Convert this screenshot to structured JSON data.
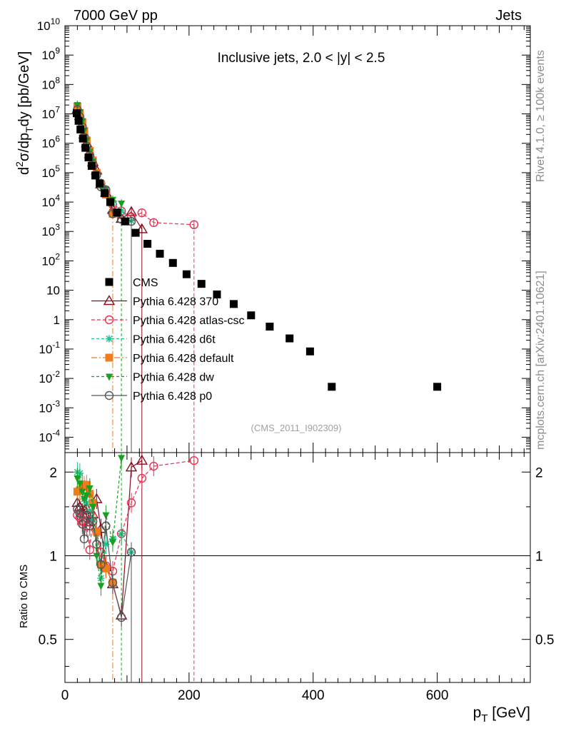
{
  "header": {
    "left": "7000 GeV pp",
    "right": "Jets"
  },
  "side": {
    "rivet": "Rivet 4.1.0, ≥ 100k events",
    "mcplots": "mcplots.cern.ch [arXiv:2401.10621]"
  },
  "chart_data": {
    "type": "scatter",
    "title": "Inclusive jets, 2.0 < |y| < 2.5",
    "watermark": "(CMS_2011_I902309)",
    "ylabel_parts": {
      "d": "d",
      "two": "2",
      "sigma": "σ/dp",
      "T": "T",
      "rest": "dy [pb/GeV]"
    },
    "xlabel_parts": {
      "p": "p",
      "T": "T",
      "unit": " [GeV]"
    },
    "ratio_ylabel": "Ratio to CMS",
    "x_ticks": [
      "0",
      "200",
      "400",
      "600"
    ],
    "xlim": [
      0,
      750
    ],
    "ylim": [
      3e-05,
      10000000000.0
    ],
    "ratio_ylim": [
      0.35,
      2.35
    ],
    "ratio_ticks": [
      "0.5",
      "1",
      "2"
    ],
    "y_ticks": [
      {
        "base": "10",
        "exp": "-4",
        "v": 0.0001
      },
      {
        "base": "10",
        "exp": "-3",
        "v": 0.001
      },
      {
        "base": "10",
        "exp": "-2",
        "v": 0.01
      },
      {
        "base": "10",
        "exp": "-1",
        "v": 0.1
      },
      {
        "base": "1",
        "exp": "",
        "v": 1
      },
      {
        "base": "10",
        "exp": "",
        "v": 10
      },
      {
        "base": "10",
        "exp": "2",
        "v": 100.0
      },
      {
        "base": "10",
        "exp": "3",
        "v": 1000.0
      },
      {
        "base": "10",
        "exp": "4",
        "v": 10000.0
      },
      {
        "base": "10",
        "exp": "5",
        "v": 100000.0
      },
      {
        "base": "10",
        "exp": "6",
        "v": 1000000.0
      },
      {
        "base": "10",
        "exp": "7",
        "v": 10000000.0
      },
      {
        "base": "10",
        "exp": "8",
        "v": 100000000.0
      },
      {
        "base": "10",
        "exp": "9",
        "v": 1000000000.0
      },
      {
        "base": "10",
        "exp": "10",
        "v": 10000000000.0
      }
    ],
    "data": {
      "name": "CMS",
      "x": [
        19,
        22,
        25,
        29,
        33,
        38,
        43,
        49,
        56,
        64,
        73,
        84,
        97,
        114,
        133,
        153,
        174,
        196,
        220,
        245,
        272,
        300,
        330,
        362,
        395,
        430,
        600
      ],
      "y": [
        10500000.0,
        5800000.0,
        2950000.0,
        1450000.0,
        700000.0,
        330000.0,
        170000.0,
        80000.0,
        43000.0,
        20000.0,
        10000.0,
        4400.0,
        2200.0,
        900,
        380,
        175,
        85,
        35,
        16.5,
        7.2,
        3.4,
        1.4,
        0.58,
        0.23,
        0.083,
        0.0052,
        0.0052
      ]
    },
    "series": [
      {
        "name": "Pythia 6.428 370",
        "color": "#8b0a1e",
        "dash": "",
        "marker": "triangle-open",
        "x": [
          20,
          24,
          28,
          31,
          35,
          40,
          45,
          51,
          58,
          66,
          77,
          91,
          107,
          124
        ],
        "y": [
          14500000.0,
          8500000.0,
          4000000.0,
          2000000.0,
          1000000.0,
          430000.0,
          230000.0,
          120000.0,
          40000.0,
          21000.0,
          5500.0,
          2700.0,
          4600.0,
          1200.0
        ],
        "ratio": [
          1.55,
          1.5,
          1.42,
          1.46,
          1.48,
          1.32,
          1.41,
          1.6,
          1.25,
          0.91,
          0.79,
          0.61,
          2.08,
          2.2
        ]
      },
      {
        "name": "Pythia 6.428 atlas-csc",
        "color": "#e8304e",
        "dash": "5,3",
        "marker": "circle-open",
        "x": [
          20,
          24,
          28,
          31,
          35,
          40,
          45,
          51,
          58,
          66,
          77,
          91,
          107,
          124,
          143,
          208
        ],
        "y": [
          13000000.0,
          7300000.0,
          3600000.0,
          1800000.0,
          850000.0,
          400000.0,
          200000.0,
          95000.0,
          43000.0,
          20000.0,
          8000.0,
          5000.0,
          3100.0,
          4300.0,
          2000.0,
          1700.0
        ],
        "ratio": [
          1.4,
          1.37,
          1.33,
          1.32,
          1.28,
          1.05,
          1.38,
          1.22,
          1.03,
          0.92,
          0.88,
          1.2,
          1.55,
          1.9,
          2.1,
          2.2
        ]
      },
      {
        "name": "Pythia 6.428 d6t",
        "color": "#1dbf8a",
        "dash": "4,3",
        "marker": "star",
        "x": [
          20,
          24,
          28,
          31,
          35,
          40,
          45,
          51,
          58,
          66,
          77,
          91,
          107
        ],
        "y": [
          20000000.0,
          11500000.0,
          5300000.0,
          2400000.0,
          1100000.0,
          470000.0,
          230000.0,
          100000.0,
          36000.0,
          22000.0,
          9500.0,
          5000.0,
          2300.0
        ],
        "ratio": [
          2.0,
          1.98,
          1.82,
          1.6,
          1.55,
          1.45,
          1.35,
          1.2,
          0.83,
          1.1,
          1.15,
          1.2,
          1.03
        ]
      },
      {
        "name": "Pythia 6.428 default",
        "color": "#f07c1e",
        "dash": "8,3,2,3",
        "marker": "square",
        "x": [
          20,
          24,
          28,
          31,
          35,
          40,
          45,
          51,
          58,
          66,
          77
        ],
        "y": [
          17500000.0,
          10500000.0,
          5200000.0,
          2600000.0,
          1250000.0,
          550000.0,
          260000.0,
          98000.0,
          40000.0,
          18000.0,
          4000.0
        ],
        "ratio": [
          1.7,
          1.72,
          1.77,
          1.78,
          1.8,
          1.67,
          1.55,
          1.22,
          0.93,
          0.9,
          0.8
        ]
      },
      {
        "name": "Pythia 6.428 dw",
        "color": "#18a020",
        "dash": "4,3",
        "marker": "triangle-down",
        "x": [
          20,
          24,
          28,
          31,
          35,
          40,
          45,
          51,
          58,
          66,
          77,
          91
        ],
        "y": [
          20000000.0,
          11500000.0,
          5600000.0,
          2700000.0,
          1250000.0,
          520000.0,
          245000.0,
          92000.0,
          33000.0,
          27000.0,
          12000.0,
          9000.0
        ],
        "ratio": [
          1.9,
          1.82,
          1.7,
          1.6,
          1.65,
          1.75,
          1.5,
          1.0,
          0.78,
          1.4,
          1.12,
          2.25
        ]
      },
      {
        "name": "Pythia 6.428 p0",
        "color": "#555555",
        "dash": "",
        "marker": "circle-open",
        "x": [
          20,
          24,
          28,
          31,
          35,
          40,
          45,
          51,
          58,
          66,
          77,
          91,
          107
        ],
        "y": [
          14000000.0,
          8000000.0,
          3600000.0,
          1600000.0,
          800000.0,
          390000.0,
          200000.0,
          82000.0,
          33000.0,
          26000.0,
          4000.0,
          2600.0,
          2200.0
        ],
        "ratio": [
          1.47,
          1.42,
          1.3,
          1.15,
          1.4,
          1.28,
          1.33,
          1.1,
          0.93,
          1.28,
          0.8,
          0.6,
          1.03
        ]
      }
    ]
  }
}
